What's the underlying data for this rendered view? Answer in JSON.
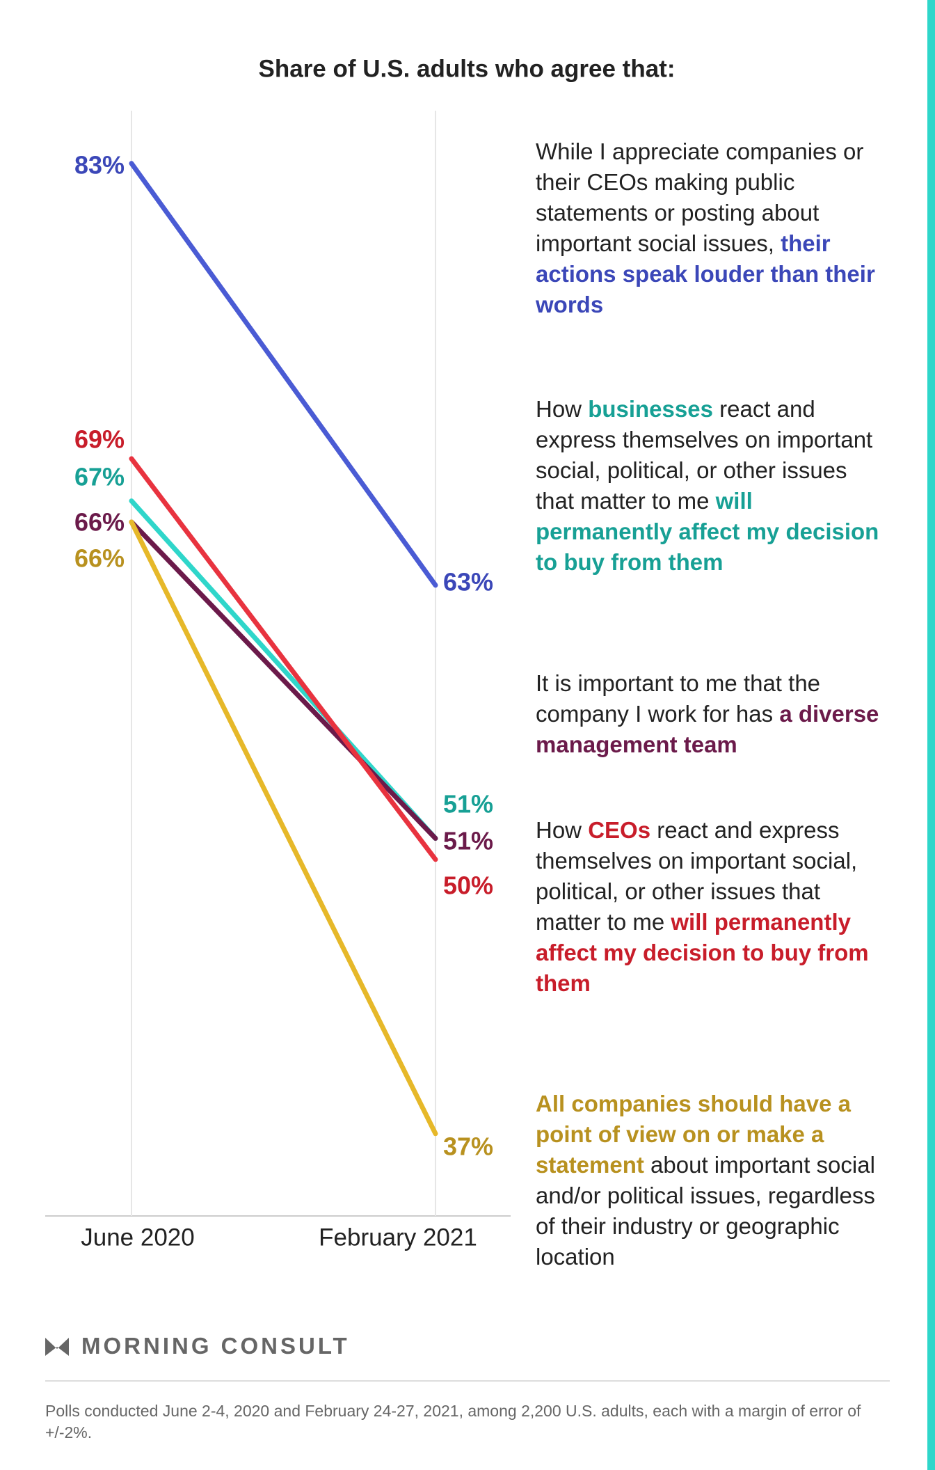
{
  "chart_data": {
    "type": "slope",
    "title": "Share of U.S. adults who agree that:",
    "categories": [
      "June 2020",
      "February 2021"
    ],
    "ylim": [
      33,
      85.5
    ],
    "grid": true,
    "series": [
      {
        "name": [
          {
            "text": "While I appreciate companies or their CEOs making public statements or posting about important social issues, ",
            "bold": false
          },
          {
            "text": "their actions speak louder than their words",
            "bold": true
          }
        ],
        "color": "#4a5bd4",
        "label_color": "#3b47b8",
        "values": [
          83,
          63
        ],
        "value_labels": [
          "83%",
          "63%"
        ]
      },
      {
        "name": [
          {
            "text": "How ",
            "bold": false
          },
          {
            "text": "businesses",
            "bold": true
          },
          {
            "text": " react and express themselves on important social, political, or other issues that matter to me ",
            "bold": false
          },
          {
            "text": "will permanently affect my decision to buy from them",
            "bold": true
          }
        ],
        "color": "#2fd6ca",
        "label_color": "#17a095",
        "values": [
          67,
          51
        ],
        "value_labels": [
          "67%",
          "51%"
        ]
      },
      {
        "name": [
          {
            "text": "It is important to me that the company I work for has ",
            "bold": false
          },
          {
            "text": "a diverse management team",
            "bold": true
          }
        ],
        "color": "#6b1a4a",
        "label_color": "#6b1a4a",
        "values": [
          66,
          51
        ],
        "value_labels": [
          "66%",
          "51%"
        ]
      },
      {
        "name": [
          {
            "text": "How ",
            "bold": false
          },
          {
            "text": "CEOs",
            "bold": true
          },
          {
            "text": " react and express themselves on important social, political, or other issues that matter to me ",
            "bold": false
          },
          {
            "text": "will permanently affect my decision to buy from them",
            "bold": true
          }
        ],
        "color": "#e8333f",
        "label_color": "#c81d2a",
        "values": [
          69,
          50
        ],
        "value_labels": [
          "69%",
          "50%"
        ]
      },
      {
        "name": [
          {
            "text": "All companies should have a point of view on or make a statement",
            "bold": true
          },
          {
            "text": " about important social and/or political issues, regardless of their industry or geographic location",
            "bold": false
          }
        ],
        "color": "#e6b829",
        "label_color": "#b8911f",
        "values": [
          66,
          37
        ],
        "value_labels": [
          "66%",
          "37%"
        ]
      }
    ],
    "brand": "MORNING CONSULT",
    "footnote": "Polls conducted June 2-4, 2020 and February 24-27, 2021, among 2,200 U.S. adults, each with a margin of error of +/-2%."
  }
}
